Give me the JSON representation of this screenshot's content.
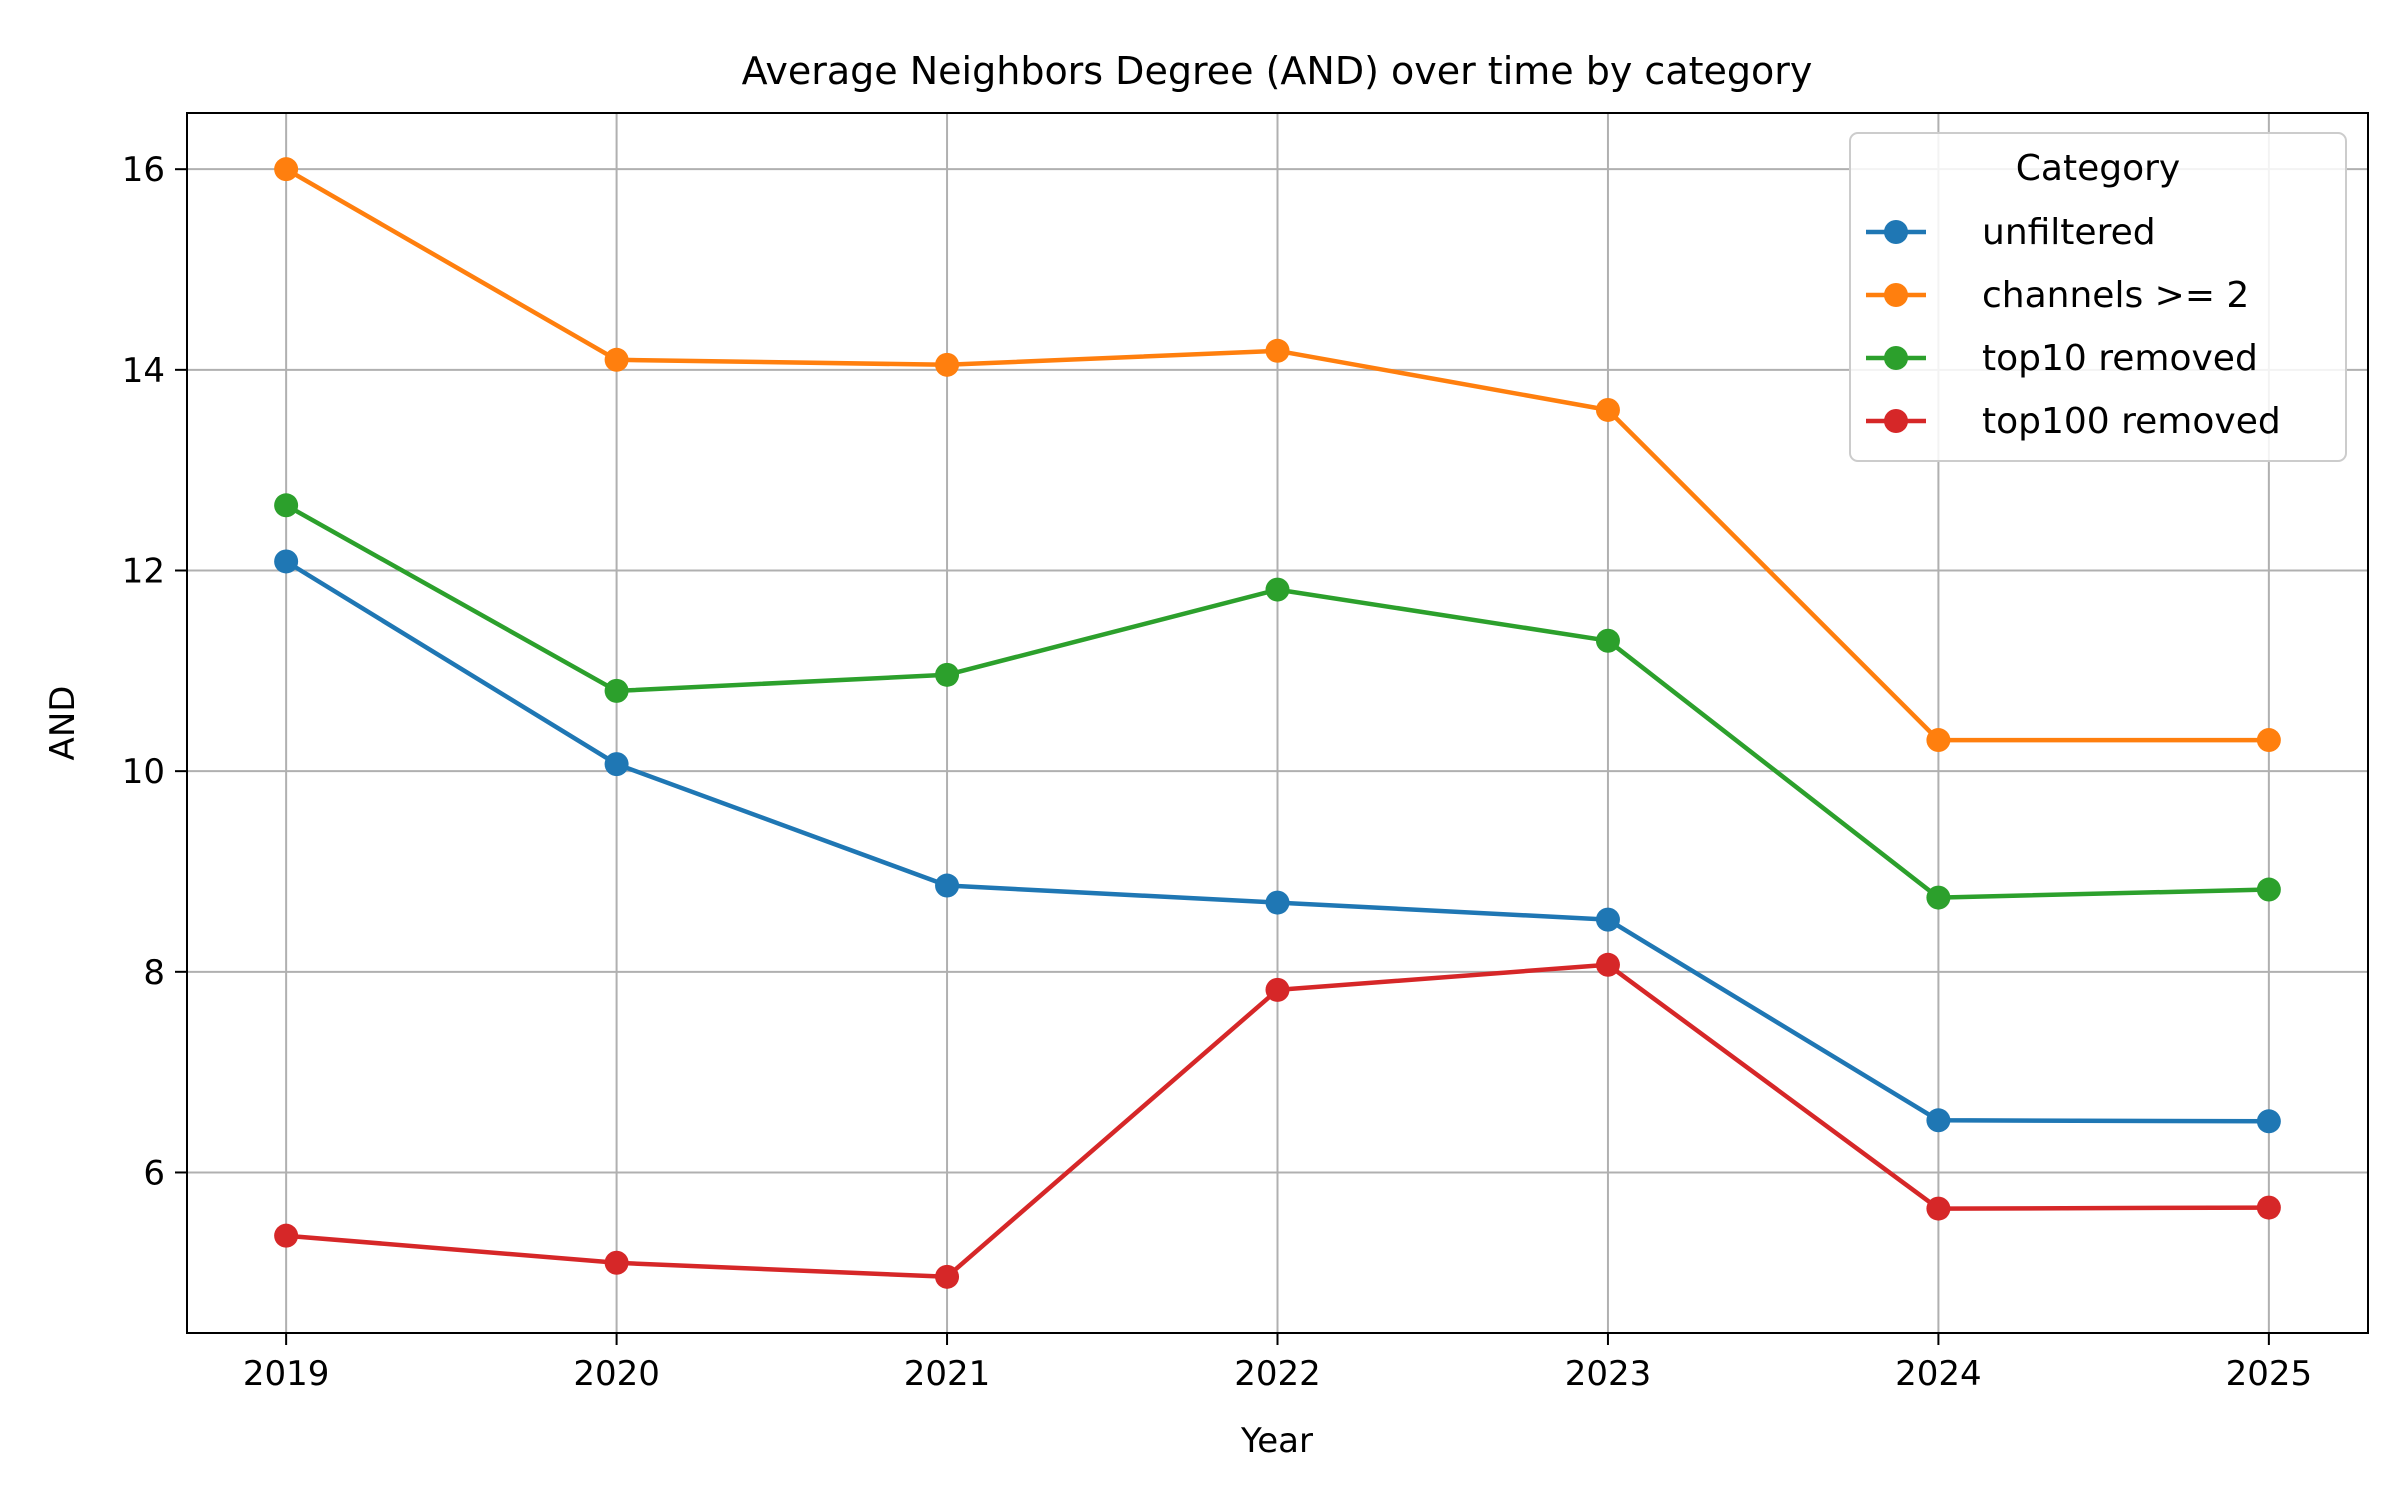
{
  "chart_data": {
    "type": "line",
    "title": "Average Neighbors Degree (AND) over time by category",
    "xlabel": "Year",
    "ylabel": "AND",
    "x": [
      2019,
      2020,
      2021,
      2022,
      2023,
      2024,
      2025
    ],
    "x_tick_labels": [
      "2019",
      "2020",
      "2021",
      "2022",
      "2023",
      "2024",
      "2025"
    ],
    "xlim": [
      2018.7,
      2025.3
    ],
    "ylim": [
      4.4,
      16.56
    ],
    "y_ticks": [
      6,
      8,
      10,
      12,
      14,
      16
    ],
    "y_tick_labels": [
      "6",
      "8",
      "10",
      "12",
      "14",
      "16"
    ],
    "grid": true,
    "legend": {
      "title": "Category",
      "placement": "top-right"
    },
    "series": [
      {
        "name": "unfiltered",
        "color": "#1f77b4",
        "values": [
          12.09,
          10.07,
          8.86,
          8.69,
          8.52,
          6.52,
          6.51
        ]
      },
      {
        "name": "channels >= 2",
        "color": "#ff7f0e",
        "values": [
          16.0,
          14.1,
          14.05,
          14.19,
          13.6,
          10.31,
          10.31
        ]
      },
      {
        "name": "top10 removed",
        "color": "#2ca02c",
        "values": [
          12.65,
          10.8,
          10.96,
          11.81,
          11.3,
          8.74,
          8.82
        ]
      },
      {
        "name": "top100 removed",
        "color": "#d62728",
        "values": [
          5.37,
          5.1,
          4.96,
          7.82,
          8.07,
          5.64,
          5.65
        ]
      }
    ]
  }
}
